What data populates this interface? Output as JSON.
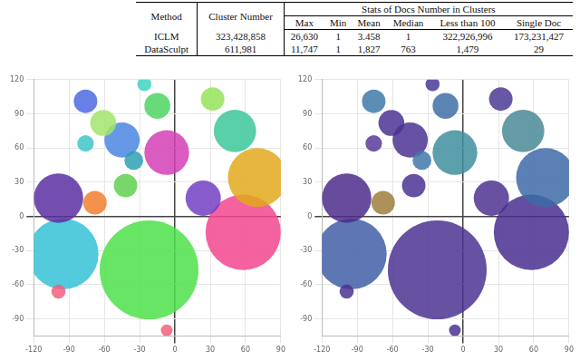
{
  "table": {
    "header": {
      "method": "Method",
      "cluster_number": "Cluster Number",
      "group": "Stats of Docs Number in Clusters",
      "columns": [
        "Max",
        "Min",
        "Mean",
        "Median",
        "Less than 100",
        "Single Doc"
      ]
    },
    "rows": [
      [
        "ICLM",
        "323,428,858",
        "26,630",
        "1",
        "3.458",
        "1",
        "322,926,996",
        "173,231,427"
      ],
      [
        "DataSculpt",
        "611,981",
        "11,747",
        "1",
        "1,827",
        "763",
        "1,479",
        "29"
      ]
    ]
  },
  "chart_data": [
    {
      "type": "bubble",
      "xlim": [
        -120,
        90
      ],
      "ylim": [
        -105,
        120
      ],
      "xticks": [
        -120,
        -90,
        -60,
        -30,
        0,
        30,
        60,
        90
      ],
      "yticks": [
        -90,
        -60,
        -30,
        0,
        30,
        60,
        90,
        120
      ],
      "grid": true,
      "points": [
        {
          "x": -22,
          "y": -47,
          "r": 42
        },
        {
          "x": -95,
          "y": -33,
          "r": 30
        },
        {
          "x": 58,
          "y": -14,
          "r": 32
        },
        {
          "x": 70,
          "y": 34,
          "r": 25
        },
        {
          "x": -99,
          "y": 16,
          "r": 21
        },
        {
          "x": -7,
          "y": 56,
          "r": 19
        },
        {
          "x": -45,
          "y": 67,
          "r": 15
        },
        {
          "x": 51,
          "y": 75,
          "r": 18
        },
        {
          "x": 24,
          "y": 16,
          "r": 15
        },
        {
          "x": 32,
          "y": 103,
          "r": 10
        },
        {
          "x": -15,
          "y": 97,
          "r": 11
        },
        {
          "x": -26,
          "y": 116,
          "r": 6
        },
        {
          "x": -61,
          "y": 82,
          "r": 11
        },
        {
          "x": -76,
          "y": 101,
          "r": 10
        },
        {
          "x": -76,
          "y": 64,
          "r": 7
        },
        {
          "x": -68,
          "y": 12,
          "r": 10
        },
        {
          "x": -42,
          "y": 27,
          "r": 10
        },
        {
          "x": -35,
          "y": 49,
          "r": 8
        },
        {
          "x": -99,
          "y": -66,
          "r": 6
        },
        {
          "x": -7,
          "y": -100,
          "r": 5
        }
      ],
      "colors": [
        "#4de04a",
        "#35c2d6",
        "#f2478e",
        "#e2a91c",
        "#5b2fa0",
        "#d33fb6",
        "#4a86e3",
        "#3cc79b",
        "#7340c4",
        "#96e35a",
        "#4fd463",
        "#3fd3c2",
        "#a2e46c",
        "#4d6ae0",
        "#3fc6c8",
        "#f27f2e",
        "#5fd04e",
        "#2f9fb3",
        "#f2607f",
        "#f2607f"
      ]
    },
    {
      "type": "bubble",
      "xlim": [
        -120,
        90
      ],
      "ylim": [
        -105,
        120
      ],
      "xticks": [
        -120,
        -90,
        -60,
        -30,
        0,
        30,
        60,
        90
      ],
      "yticks": [
        -90,
        -60,
        -30,
        0,
        30,
        60,
        90,
        120
      ],
      "grid": true,
      "points": [
        {
          "x": -22,
          "y": -47,
          "r": 42
        },
        {
          "x": -95,
          "y": -33,
          "r": 30
        },
        {
          "x": 58,
          "y": -14,
          "r": 32
        },
        {
          "x": 70,
          "y": 34,
          "r": 25
        },
        {
          "x": -99,
          "y": 16,
          "r": 21
        },
        {
          "x": -7,
          "y": 56,
          "r": 19
        },
        {
          "x": -45,
          "y": 67,
          "r": 15
        },
        {
          "x": 51,
          "y": 75,
          "r": 18
        },
        {
          "x": 24,
          "y": 16,
          "r": 15
        },
        {
          "x": 32,
          "y": 103,
          "r": 10
        },
        {
          "x": -15,
          "y": 97,
          "r": 11
        },
        {
          "x": -26,
          "y": 116,
          "r": 6
        },
        {
          "x": -61,
          "y": 82,
          "r": 11
        },
        {
          "x": -76,
          "y": 101,
          "r": 10
        },
        {
          "x": -76,
          "y": 64,
          "r": 7
        },
        {
          "x": -68,
          "y": 12,
          "r": 10
        },
        {
          "x": -42,
          "y": 27,
          "r": 10
        },
        {
          "x": -35,
          "y": 49,
          "r": 8
        },
        {
          "x": -99,
          "y": -66,
          "r": 6
        },
        {
          "x": -7,
          "y": -100,
          "r": 5
        }
      ],
      "colors": [
        "#4b3392",
        "#3f5fa6",
        "#4a2f8e",
        "#3d6aa8",
        "#4c2d8c",
        "#3f8fa0",
        "#4b3392",
        "#4a8a98",
        "#4d3290",
        "#4c3a94",
        "#3f6ea6",
        "#4a3a96",
        "#4b3392",
        "#3f7aa8",
        "#5a3a9a",
        "#a07c3c",
        "#4b3392",
        "#3f7aa8",
        "#4b3392",
        "#4b3392"
      ]
    }
  ]
}
